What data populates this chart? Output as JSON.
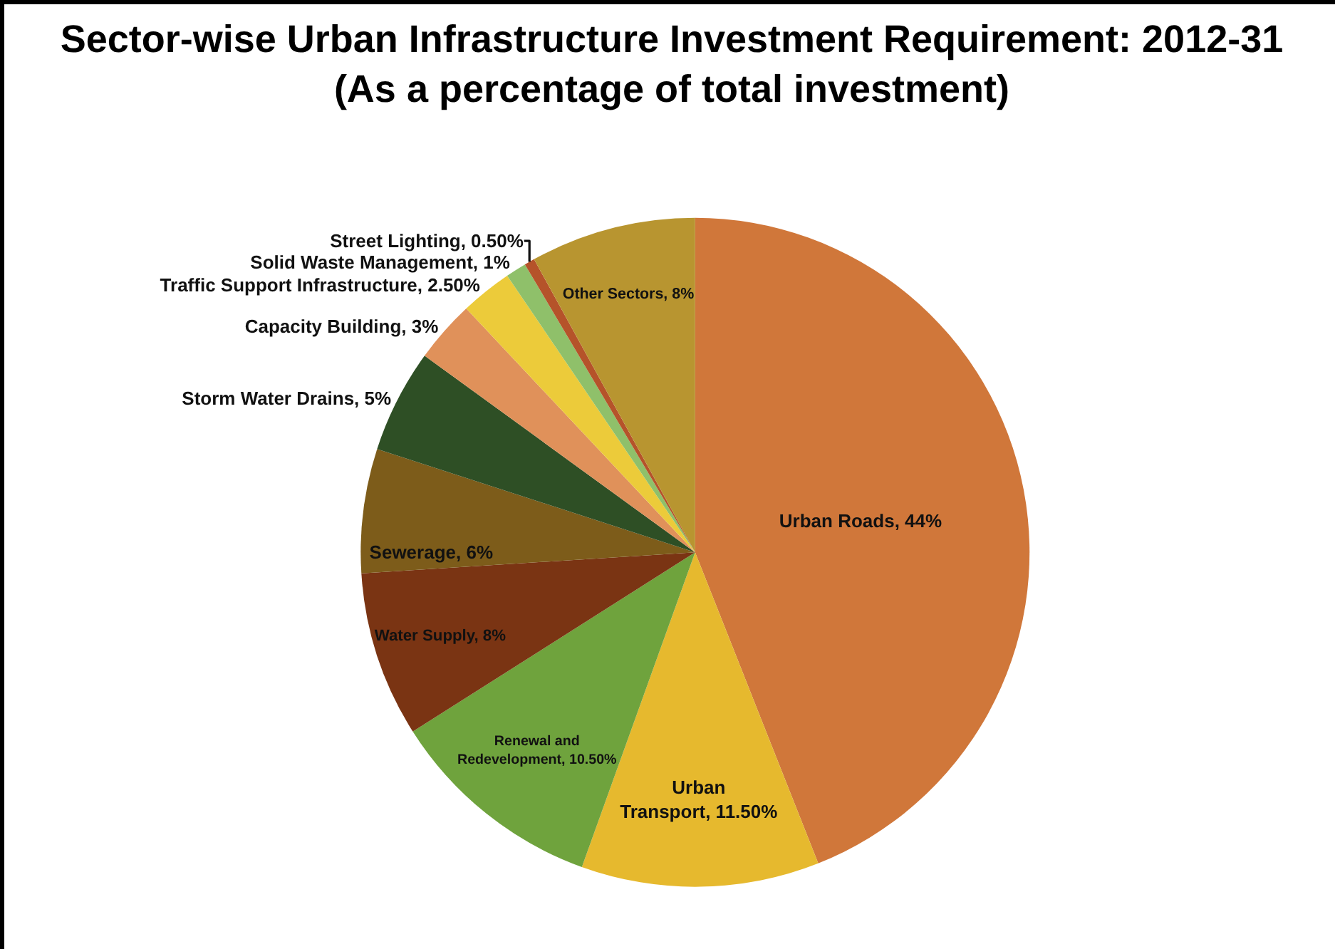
{
  "chart_data": {
    "type": "pie",
    "title": "Sector-wise Urban Infrastructure Investment Requirement: 2012-31",
    "subtitle": "(As a percentage of total investment)",
    "categories": [
      "Urban Roads",
      "Urban Transport",
      "Renewal and Redevelopment",
      "Water Supply",
      "Sewerage",
      "Storm Water Drains",
      "Capacity Building",
      "Traffic Support Infrastructure",
      "Solid Waste Management",
      "Street Lighting",
      "Other Sectors"
    ],
    "values": [
      44,
      11.5,
      10.5,
      8,
      6,
      5,
      3,
      2.5,
      1,
      0.5,
      8
    ],
    "value_labels": [
      "44%",
      "11.50%",
      "10.50%",
      "8%",
      "6%",
      "5%",
      "3%",
      "2.50%",
      "1%",
      "0.50%",
      "8%"
    ],
    "colors": [
      "#d0773a",
      "#e6b92e",
      "#6fa33d",
      "#7a3413",
      "#7d5c1a",
      "#2e4f25",
      "#e0915a",
      "#eccb3a",
      "#8fc06a",
      "#b5532a",
      "#b89530"
    ],
    "legend": false
  }
}
